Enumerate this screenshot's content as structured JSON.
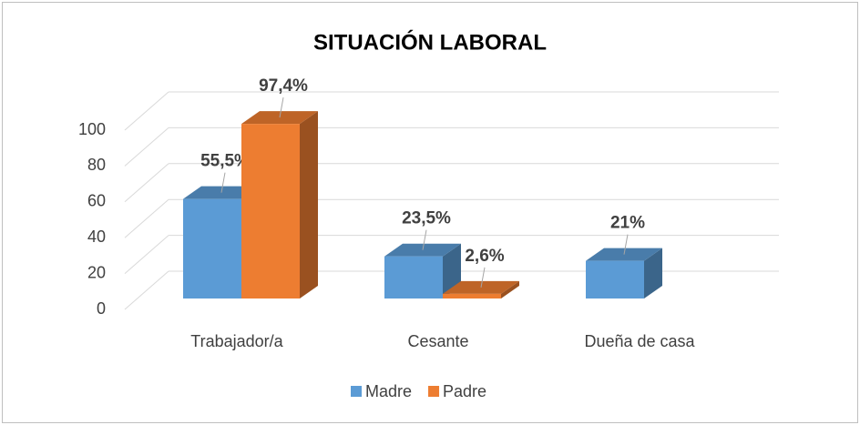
{
  "chart_data": {
    "type": "bar3d",
    "title": "SITUACIÓN LABORAL",
    "categories": [
      "Trabajador/a",
      "Cesante",
      "Dueña de casa"
    ],
    "series": [
      {
        "name": "Madre",
        "color": "#5b9bd5",
        "values": [
          55.5,
          23.5,
          21
        ],
        "value_labels": [
          "55,5%",
          "23,5%",
          "21%"
        ]
      },
      {
        "name": "Padre",
        "color": "#ed7d31",
        "values": [
          97.4,
          2.6,
          null
        ],
        "value_labels": [
          "97,4%",
          "2,6%",
          null
        ]
      }
    ],
    "ylim": [
      0,
      100
    ],
    "yticks": [
      0,
      20,
      40,
      60,
      80,
      100
    ],
    "grid": true,
    "legend": "bottom"
  }
}
